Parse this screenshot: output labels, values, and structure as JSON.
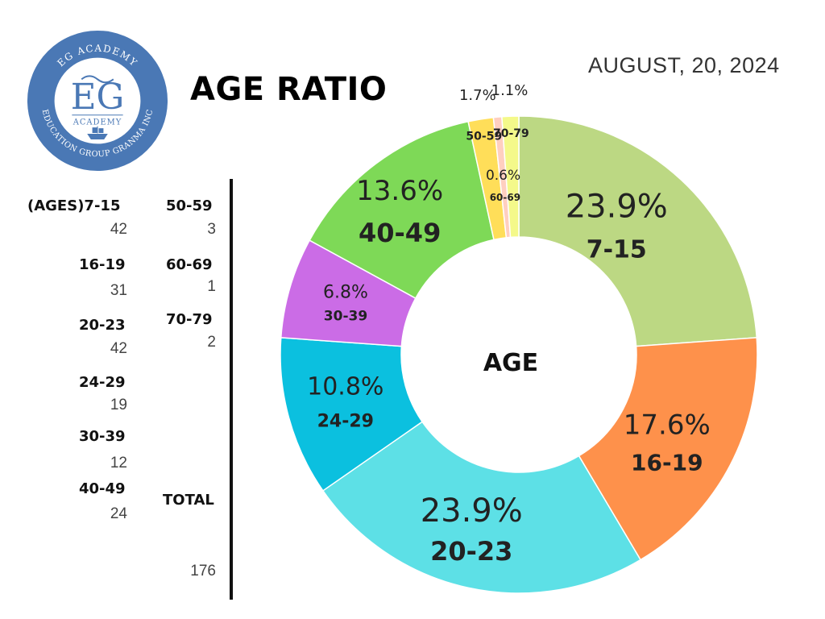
{
  "logo": {
    "top_text": "EG ACADEMY",
    "monogram": "EG",
    "sub_text": "ACADEMY",
    "bottom_text": "EDUCATION GROUP GRANMA INC",
    "color": "#4a78b5"
  },
  "title": "AGE RATIO",
  "date": "AUGUST, 20, 2024",
  "table": {
    "left_column": [
      {
        "label": "(AGES)7-15",
        "count": "42"
      },
      {
        "label": "16-19",
        "count": "31"
      },
      {
        "label": "20-23",
        "count": "42"
      },
      {
        "label": "24-29",
        "count": "19"
      },
      {
        "label": "30-39",
        "count": "12"
      },
      {
        "label": "40-49",
        "count": "24"
      }
    ],
    "right_column": [
      {
        "label": "50-59",
        "count": "3"
      },
      {
        "label": "60-69",
        "count": "1"
      },
      {
        "label": "70-79",
        "count": "2"
      }
    ],
    "total_label": "TOTAL",
    "total_value": "176"
  },
  "chart_data": {
    "type": "pie",
    "center_label": "AGE",
    "start_angle_deg": 0,
    "direction": "clockwise",
    "slices": [
      {
        "label": "7-15",
        "value": 42,
        "percent": "23.9%",
        "color": "#bcd883"
      },
      {
        "label": "16-19",
        "value": 31,
        "percent": "17.6%",
        "color": "#fe914b"
      },
      {
        "label": "20-23",
        "value": 42,
        "percent": "23.9%",
        "color": "#5de0e6"
      },
      {
        "label": "24-29",
        "value": 19,
        "percent": "10.8%",
        "color": "#0bc0df"
      },
      {
        "label": "30-39",
        "value": 12,
        "percent": "6.8%",
        "color": "#cb6ce6"
      },
      {
        "label": "40-49",
        "value": 24,
        "percent": "13.6%",
        "color": "#7ed957"
      },
      {
        "label": "50-59",
        "value": 3,
        "percent": "1.7%",
        "color": "#ffde59"
      },
      {
        "label": "60-69",
        "value": 1,
        "percent": "0.6%",
        "color": "#ffcfc0"
      },
      {
        "label": "70-79",
        "value": 2,
        "percent": "1.1%",
        "color": "#f4f98a"
      }
    ]
  }
}
